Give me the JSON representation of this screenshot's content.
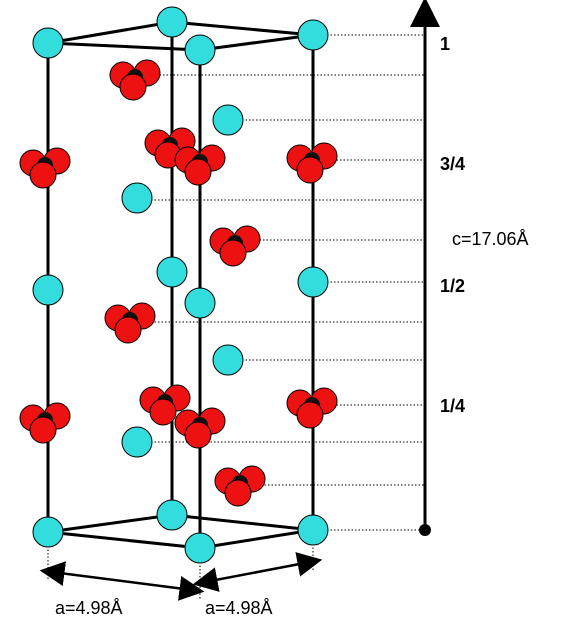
{
  "axis_labels": [
    "1",
    "3/4",
    "1/2",
    "1/4"
  ],
  "c_label": "c=17.06Å",
  "a_labels": [
    "a=4.98Å",
    "a=4.98Å"
  ]
}
